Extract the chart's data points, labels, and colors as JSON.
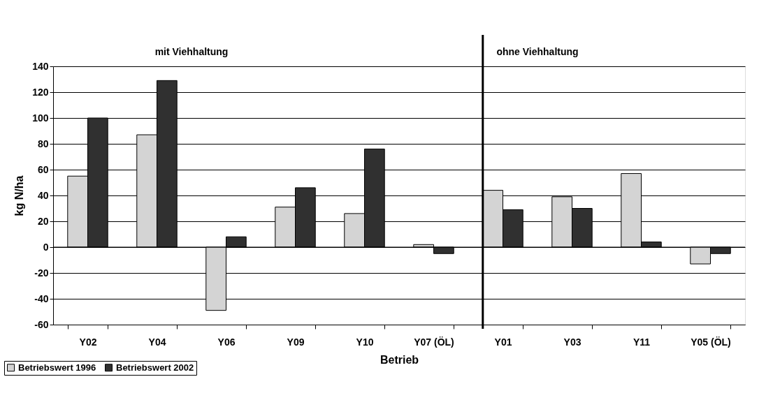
{
  "chart_data": {
    "type": "bar",
    "xlabel": "Betrieb",
    "ylabel": "kg N/ha",
    "categories": [
      "Y02",
      "Y04",
      "Y06",
      "Y09",
      "Y10",
      "Y07 (ÖL)",
      "Y01",
      "Y03",
      "Y11",
      "Y05 (ÖL)"
    ],
    "series": [
      {
        "name": "Betriebswert 1996",
        "color": "#d4d4d4",
        "values": [
          55,
          87,
          -49,
          31,
          26,
          2,
          44,
          39,
          57,
          -13
        ]
      },
      {
        "name": "Betriebswert 2002",
        "color": "#303030",
        "values": [
          100,
          129,
          8,
          46,
          76,
          -5,
          29,
          30,
          4,
          -5
        ]
      }
    ],
    "ylim": [
      -60,
      140
    ],
    "yticks": [
      -60,
      -40,
      -20,
      0,
      20,
      40,
      60,
      80,
      100,
      120,
      140
    ],
    "grid": "y",
    "legend": "bottom left",
    "ref_lines": [
      {
        "axis": "x",
        "value": "Y01",
        "color": "#000000"
      }
    ],
    "annotations": [
      "mit Viehhaltung",
      "ohne Viehhaltung"
    ]
  }
}
